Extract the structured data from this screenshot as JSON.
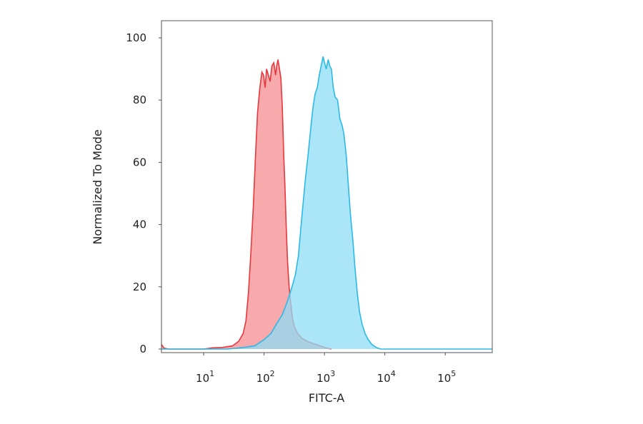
{
  "chart_data": {
    "type": "area",
    "title": "",
    "xlabel": "FITC-A",
    "ylabel": "Normalized To Mode",
    "x_scale": "log",
    "xlim": [
      2,
      600000
    ],
    "ylim": [
      0,
      100
    ],
    "x_ticks": [
      {
        "value": 10,
        "base": "10",
        "exp": "1"
      },
      {
        "value": 100,
        "base": "10",
        "exp": "2"
      },
      {
        "value": 1000,
        "base": "10",
        "exp": "3"
      },
      {
        "value": 10000,
        "base": "10",
        "exp": "4"
      },
      {
        "value": 100000,
        "base": "10",
        "exp": "5"
      }
    ],
    "y_ticks": [
      0,
      20,
      40,
      60,
      80,
      100
    ],
    "grid": false,
    "series": [
      {
        "color": "#e8383d",
        "fill": "#f58c8f",
        "points": [
          [
            2,
            1.5
          ],
          [
            2.2,
            0.3
          ],
          [
            2.6,
            0
          ],
          [
            10,
            0
          ],
          [
            14,
            0.4
          ],
          [
            20,
            0.5
          ],
          [
            30,
            1
          ],
          [
            38,
            2.5
          ],
          [
            45,
            5
          ],
          [
            50,
            9
          ],
          [
            55,
            18
          ],
          [
            60,
            30
          ],
          [
            66,
            45
          ],
          [
            72,
            62
          ],
          [
            78,
            76
          ],
          [
            85,
            84
          ],
          [
            92,
            89
          ],
          [
            98,
            88
          ],
          [
            104,
            84
          ],
          [
            110,
            90
          ],
          [
            118,
            88
          ],
          [
            126,
            86
          ],
          [
            135,
            91
          ],
          [
            145,
            92
          ],
          [
            155,
            88
          ],
          [
            162,
            91
          ],
          [
            170,
            93
          ],
          [
            180,
            90
          ],
          [
            190,
            87
          ],
          [
            200,
            78
          ],
          [
            212,
            62
          ],
          [
            222,
            52
          ],
          [
            232,
            40
          ],
          [
            245,
            28
          ],
          [
            260,
            20
          ],
          [
            275,
            15
          ],
          [
            295,
            10
          ],
          [
            320,
            7
          ],
          [
            360,
            5
          ],
          [
            420,
            3.5
          ],
          [
            520,
            2.5
          ],
          [
            650,
            1.8
          ],
          [
            800,
            1.2
          ],
          [
            950,
            0.7
          ],
          [
            1100,
            0.3
          ],
          [
            1300,
            0
          ]
        ]
      },
      {
        "color": "#2bb9e6",
        "fill": "#8fdcf5",
        "points": [
          [
            2,
            0
          ],
          [
            25,
            0
          ],
          [
            45,
            0.5
          ],
          [
            70,
            1
          ],
          [
            100,
            3
          ],
          [
            130,
            5
          ],
          [
            160,
            8
          ],
          [
            200,
            11
          ],
          [
            240,
            15
          ],
          [
            270,
            18
          ],
          [
            300,
            21
          ],
          [
            330,
            24
          ],
          [
            370,
            30
          ],
          [
            420,
            42
          ],
          [
            480,
            54
          ],
          [
            540,
            63
          ],
          [
            600,
            72
          ],
          [
            650,
            78
          ],
          [
            700,
            82
          ],
          [
            760,
            84
          ],
          [
            820,
            88
          ],
          [
            880,
            91
          ],
          [
            950,
            94
          ],
          [
            1000,
            92
          ],
          [
            1070,
            90
          ],
          [
            1150,
            93
          ],
          [
            1220,
            91
          ],
          [
            1300,
            90
          ],
          [
            1400,
            84
          ],
          [
            1500,
            81
          ],
          [
            1650,
            80
          ],
          [
            1800,
            74
          ],
          [
            1950,
            72
          ],
          [
            2100,
            69
          ],
          [
            2300,
            62
          ],
          [
            2500,
            52
          ],
          [
            2700,
            43
          ],
          [
            2950,
            35
          ],
          [
            3200,
            26
          ],
          [
            3500,
            18
          ],
          [
            3800,
            12
          ],
          [
            4200,
            8
          ],
          [
            4700,
            5
          ],
          [
            5300,
            3
          ],
          [
            6100,
            1.5
          ],
          [
            7200,
            0.5
          ],
          [
            8500,
            0
          ],
          [
            600000,
            0
          ]
        ]
      }
    ]
  }
}
